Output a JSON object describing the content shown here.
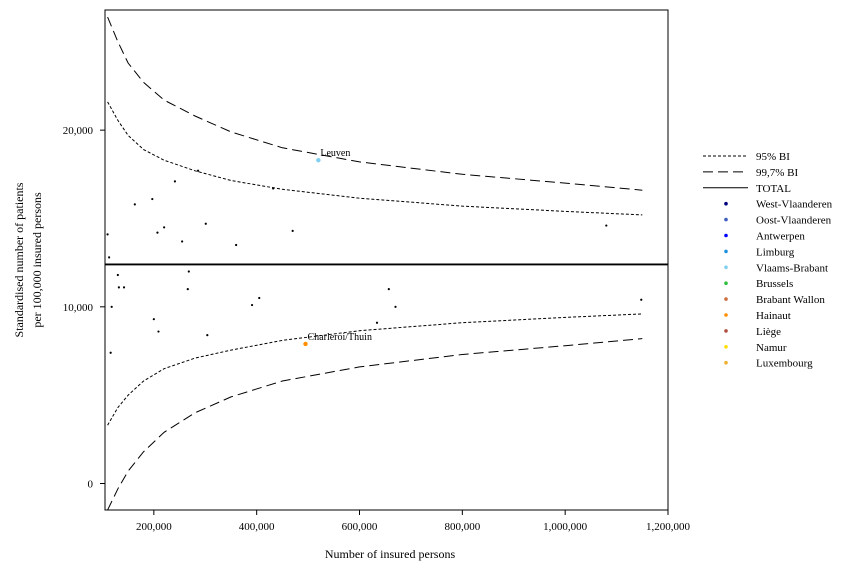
{
  "chart_data": {
    "type": "scatter",
    "xlabel": "Number of insured persons",
    "ylabel": [
      "Standardised number of patients",
      "per 100,000 insured persons"
    ],
    "xlim": [
      105000,
      1200000
    ],
    "ylim": [
      -1500,
      26800
    ],
    "x_ticks": [
      200000,
      400000,
      600000,
      800000,
      1000000,
      1200000
    ],
    "x_tick_labels": [
      "200,000",
      "400,000",
      "600,000",
      "800,000",
      "1,000,000",
      "1,200,000"
    ],
    "y_ticks": [
      0,
      10000,
      20000
    ],
    "y_tick_labels": [
      "0",
      "10,000",
      "20,000"
    ],
    "total": 12400,
    "legend_placement": "right",
    "legend": [
      {
        "label": "95% BI",
        "kind": "line",
        "dash": "short"
      },
      {
        "label": "99,7% BI",
        "kind": "line",
        "dash": "long"
      },
      {
        "label": "TOTAL",
        "kind": "line",
        "dash": "solid"
      },
      {
        "label": "West-Vlaanderen",
        "kind": "dot",
        "color": "#00007f"
      },
      {
        "label": "Oost-Vlaanderen",
        "kind": "dot",
        "color": "#3f5fbf"
      },
      {
        "label": "Antwerpen",
        "kind": "dot",
        "color": "#0000ff"
      },
      {
        "label": "Limburg",
        "kind": "dot",
        "color": "#1f8fdf"
      },
      {
        "label": "Vlaams-Brabant",
        "kind": "dot",
        "color": "#7fcfef"
      },
      {
        "label": "Brussels",
        "kind": "dot",
        "color": "#2fbf3f"
      },
      {
        "label": "Brabant Wallon",
        "kind": "dot",
        "color": "#cf6f3f"
      },
      {
        "label": "Hainaut",
        "kind": "dot",
        "color": "#ff8f00"
      },
      {
        "label": "Liège",
        "kind": "dot",
        "color": "#af4f3f"
      },
      {
        "label": "Namur",
        "kind": "dot",
        "color": "#ffdf00"
      },
      {
        "label": "Luxembourg",
        "kind": "dot",
        "color": "#efaf2f"
      }
    ],
    "ci95_upper": [
      [
        110000,
        21600
      ],
      [
        130000,
        20550
      ],
      [
        150000,
        19700
      ],
      [
        180000,
        18900
      ],
      [
        220000,
        18300
      ],
      [
        280000,
        17700
      ],
      [
        350000,
        17150
      ],
      [
        450000,
        16650
      ],
      [
        600000,
        16150
      ],
      [
        800000,
        15700
      ],
      [
        1000000,
        15400
      ],
      [
        1150000,
        15200
      ]
    ],
    "ci95_lower": [
      [
        110000,
        3300
      ],
      [
        130000,
        4300
      ],
      [
        150000,
        5000
      ],
      [
        180000,
        5800
      ],
      [
        220000,
        6500
      ],
      [
        280000,
        7100
      ],
      [
        350000,
        7550
      ],
      [
        450000,
        8100
      ],
      [
        600000,
        8650
      ],
      [
        800000,
        9100
      ],
      [
        1000000,
        9400
      ],
      [
        1150000,
        9600
      ]
    ],
    "ci997_upper": [
      [
        110000,
        26400
      ],
      [
        130000,
        25000
      ],
      [
        150000,
        23800
      ],
      [
        180000,
        22700
      ],
      [
        220000,
        21700
      ],
      [
        280000,
        20800
      ],
      [
        350000,
        19900
      ],
      [
        450000,
        19000
      ],
      [
        600000,
        18200
      ],
      [
        800000,
        17500
      ],
      [
        1000000,
        17000
      ],
      [
        1150000,
        16600
      ]
    ],
    "ci997_lower": [
      [
        110000,
        -1500
      ],
      [
        130000,
        -300
      ],
      [
        150000,
        700
      ],
      [
        180000,
        1800
      ],
      [
        220000,
        2900
      ],
      [
        280000,
        4000
      ],
      [
        350000,
        4900
      ],
      [
        450000,
        5800
      ],
      [
        600000,
        6600
      ],
      [
        800000,
        7300
      ],
      [
        1000000,
        7800
      ],
      [
        1150000,
        8200
      ]
    ],
    "points": [
      {
        "x": 110000,
        "y": 14100,
        "color": "#000000"
      },
      {
        "x": 113000,
        "y": 12800,
        "color": "#000000"
      },
      {
        "x": 116000,
        "y": 7400,
        "color": "#000000"
      },
      {
        "x": 118000,
        "y": 10000,
        "color": "#000000"
      },
      {
        "x": 130000,
        "y": 11800,
        "color": "#000000"
      },
      {
        "x": 132000,
        "y": 11100,
        "color": "#000000"
      },
      {
        "x": 142000,
        "y": 11100,
        "color": "#000000"
      },
      {
        "x": 163000,
        "y": 15800,
        "color": "#000000"
      },
      {
        "x": 197000,
        "y": 16100,
        "color": "#000000"
      },
      {
        "x": 200000,
        "y": 9300,
        "color": "#000000"
      },
      {
        "x": 207000,
        "y": 14200,
        "color": "#000000"
      },
      {
        "x": 209000,
        "y": 8600,
        "color": "#000000"
      },
      {
        "x": 220000,
        "y": 14500,
        "color": "#000000"
      },
      {
        "x": 241000,
        "y": 17100,
        "color": "#000000"
      },
      {
        "x": 255000,
        "y": 13700,
        "color": "#000000"
      },
      {
        "x": 266000,
        "y": 11000,
        "color": "#000000"
      },
      {
        "x": 268000,
        "y": 12000,
        "color": "#000000"
      },
      {
        "x": 286000,
        "y": 17700,
        "color": "#000000"
      },
      {
        "x": 301000,
        "y": 14700,
        "color": "#000000"
      },
      {
        "x": 304000,
        "y": 8400,
        "color": "#000000"
      },
      {
        "x": 360000,
        "y": 13500,
        "color": "#000000"
      },
      {
        "x": 391000,
        "y": 10100,
        "color": "#000000"
      },
      {
        "x": 405000,
        "y": 10500,
        "color": "#000000"
      },
      {
        "x": 432000,
        "y": 16700,
        "color": "#000000"
      },
      {
        "x": 470000,
        "y": 14300,
        "color": "#000000"
      },
      {
        "x": 495000,
        "y": 7900,
        "color": "#ff8f00",
        "label": "Charleroi/Thuin"
      },
      {
        "x": 520000,
        "y": 18300,
        "color": "#7fcfef",
        "label": "Leuven"
      },
      {
        "x": 634000,
        "y": 9100,
        "color": "#000000"
      },
      {
        "x": 657000,
        "y": 11000,
        "color": "#000000"
      },
      {
        "x": 670000,
        "y": 10000,
        "color": "#000000"
      },
      {
        "x": 1080000,
        "y": 14600,
        "color": "#000000"
      },
      {
        "x": 1148000,
        "y": 10400,
        "color": "#000000"
      }
    ]
  }
}
